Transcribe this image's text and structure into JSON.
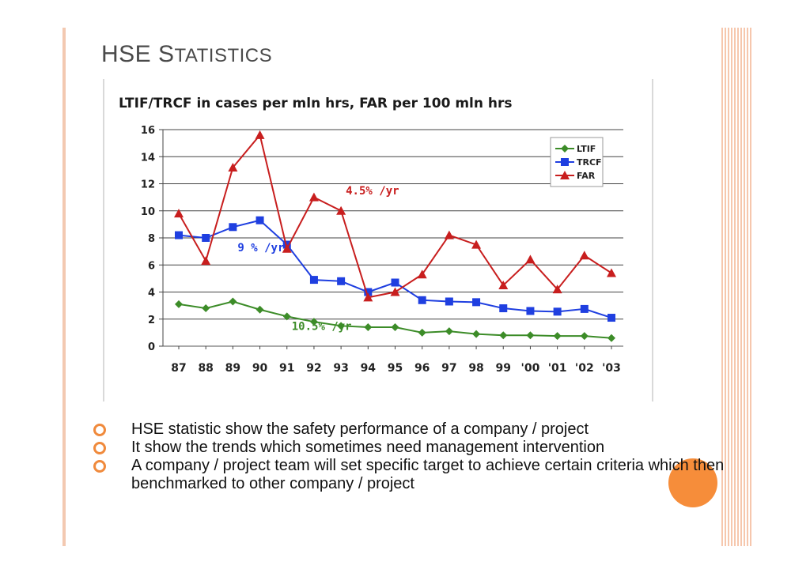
{
  "slide": {
    "title_first": "HSE S",
    "title_rest": "TATISTICS"
  },
  "bullets": [
    "HSE statistic show the safety performance of a company / project",
    "It show the trends which sometimes need management intervention",
    "A company / project team will set specific target to achieve certain criteria which then benchmarked to other company / project"
  ],
  "colors": {
    "accent": "#f08a3c",
    "ltif": "#3c8c28",
    "trcf": "#1f3fe0",
    "far": "#c81e1e"
  },
  "chart_data": {
    "type": "line",
    "title": "LTIF/TRCF in cases per mln hrs, FAR per 100 mln hrs",
    "categories": [
      "87",
      "88",
      "89",
      "90",
      "91",
      "92",
      "93",
      "94",
      "95",
      "96",
      "97",
      "98",
      "99",
      "'00",
      "'01",
      "'02",
      "'03"
    ],
    "ylim": [
      0,
      16
    ],
    "yticks": [
      0,
      2,
      4,
      6,
      8,
      10,
      12,
      14,
      16
    ],
    "grid": true,
    "legend": "top-right",
    "series": [
      {
        "name": "LTIF",
        "marker": "diamond",
        "values": [
          3.1,
          2.8,
          3.3,
          2.7,
          2.2,
          1.8,
          1.5,
          1.4,
          1.4,
          1.0,
          1.1,
          0.9,
          0.8,
          0.8,
          0.75,
          0.75,
          0.6
        ]
      },
      {
        "name": "TRCF",
        "marker": "square",
        "values": [
          8.2,
          8.0,
          8.8,
          9.3,
          7.5,
          4.9,
          4.8,
          4.0,
          4.7,
          3.4,
          3.3,
          3.25,
          2.8,
          2.6,
          2.55,
          2.75,
          2.1
        ]
      },
      {
        "name": "FAR",
        "marker": "triangle",
        "values": [
          9.8,
          6.3,
          13.2,
          15.6,
          7.2,
          11.0,
          10.0,
          3.6,
          4.0,
          5.3,
          8.2,
          7.5,
          4.5,
          6.4,
          4.2,
          6.7,
          5.4
        ]
      }
    ],
    "annotations": [
      {
        "text": "4.5% /yr",
        "series": "FAR",
        "x": "93",
        "y": 11.2
      },
      {
        "text": "9 % /yr",
        "series": "TRCF",
        "x": "89",
        "y": 7.0
      },
      {
        "text": "10.5% /yr",
        "series": "LTIF",
        "x": "91",
        "y": 1.2
      }
    ]
  }
}
